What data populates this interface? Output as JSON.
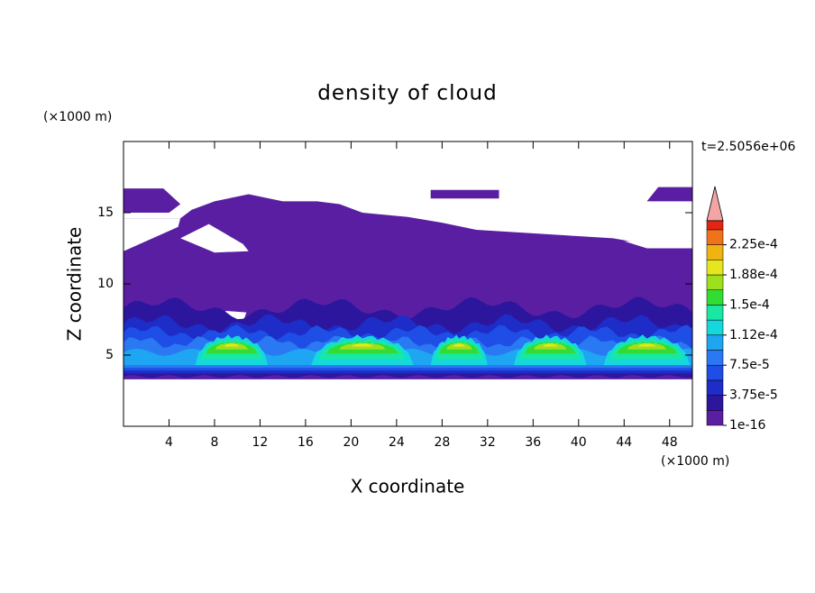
{
  "chart_data": {
    "type": "contour",
    "title": "density of cloud",
    "xlabel": "X coordinate",
    "ylabel": "Z coordinate",
    "x_unit": "(×1000 m)",
    "y_unit": "(×1000 m)",
    "annotation": "t=2.5056e+06",
    "xlim": [
      0,
      50
    ],
    "ylim": [
      0,
      20
    ],
    "xticks": [
      4,
      8,
      12,
      16,
      20,
      24,
      28,
      32,
      36,
      40,
      44,
      48
    ],
    "yticks": [
      5,
      10,
      15
    ],
    "levels": [
      1e-16,
      1.875e-05,
      3.75e-05,
      5.625e-05,
      7.5e-05,
      9.375e-05,
      0.0001125,
      0.00013125,
      0.00015,
      0.00016875,
      0.0001875,
      0.00020625,
      0.000225,
      0.00024375
    ],
    "colors": [
      "#5a1ea2",
      "#2c169e",
      "#1e2cc8",
      "#1e4ee6",
      "#2a78f2",
      "#1ea6f2",
      "#14d8dc",
      "#18e8a4",
      "#32dc32",
      "#9ee01e",
      "#e6e61e",
      "#f0b410",
      "#f0721a",
      "#e62414"
    ],
    "extend_color": "#f4a4a4",
    "colorbar_ticks": [
      1e-16,
      {
        "value": 3.75e-05,
        "label": "3.75e-5"
      },
      {
        "value": 7.5e-05,
        "label": "7.5e-5"
      },
      {
        "value": 0.0001125,
        "label": "1.12e-4"
      },
      {
        "value": 0.00015,
        "label": "1.5e-4"
      },
      {
        "value": 0.0001875,
        "label": "1.88e-4"
      },
      {
        "value": 0.000225,
        "label": "2.25e-4"
      }
    ]
  }
}
